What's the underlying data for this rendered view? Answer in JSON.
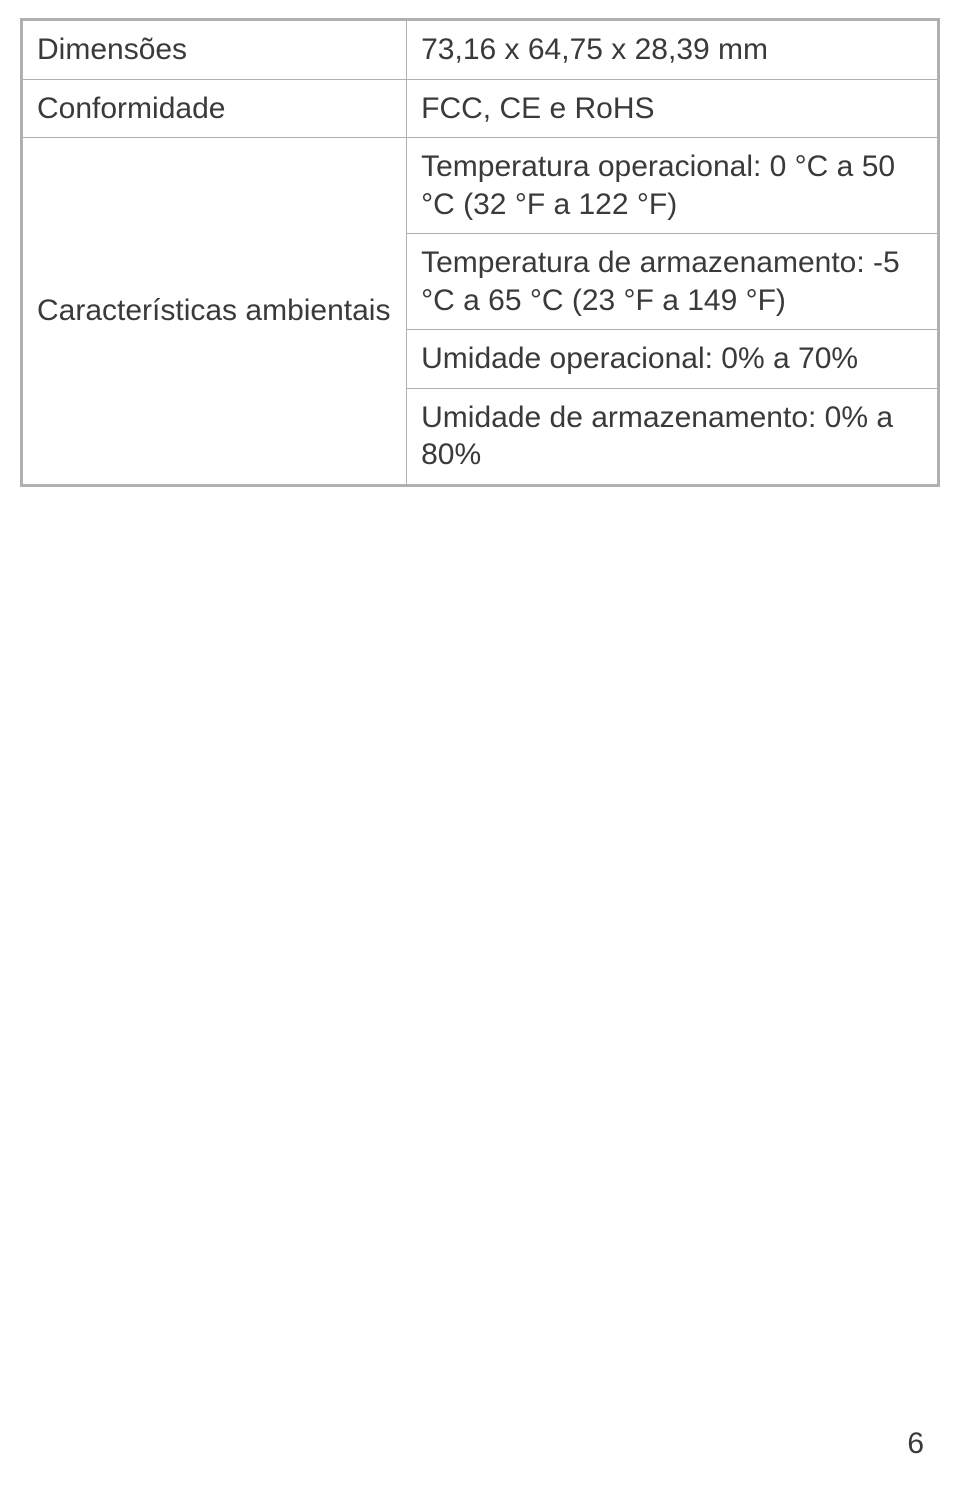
{
  "table": {
    "border_color": "#b0b0b0",
    "outer_border_color": "#b0b0b0",
    "text_color": "#3a3a3a",
    "font_size_pt": 22,
    "rows": {
      "dimensions": {
        "label": "Dimensões",
        "value": "73,16 x 64,75 x 28,39 mm"
      },
      "compliance": {
        "label": "Conformidade",
        "value": "FCC, CE e RoHS"
      },
      "environmental": {
        "label": "Características ambientais",
        "values": {
          "op_temp": "Temperatura operacional: 0 °C a 50 °C (32 °F a 122 °F)",
          "storage_temp": "Temperatura de armazenamento: -5 °C a 65 °C (23 °F a 149 °F)",
          "op_humidity": "Umidade operacional: 0% a 70%",
          "storage_humidity": "Umidade de armazenamento: 0% a 80%"
        }
      }
    }
  },
  "page_number": "6"
}
